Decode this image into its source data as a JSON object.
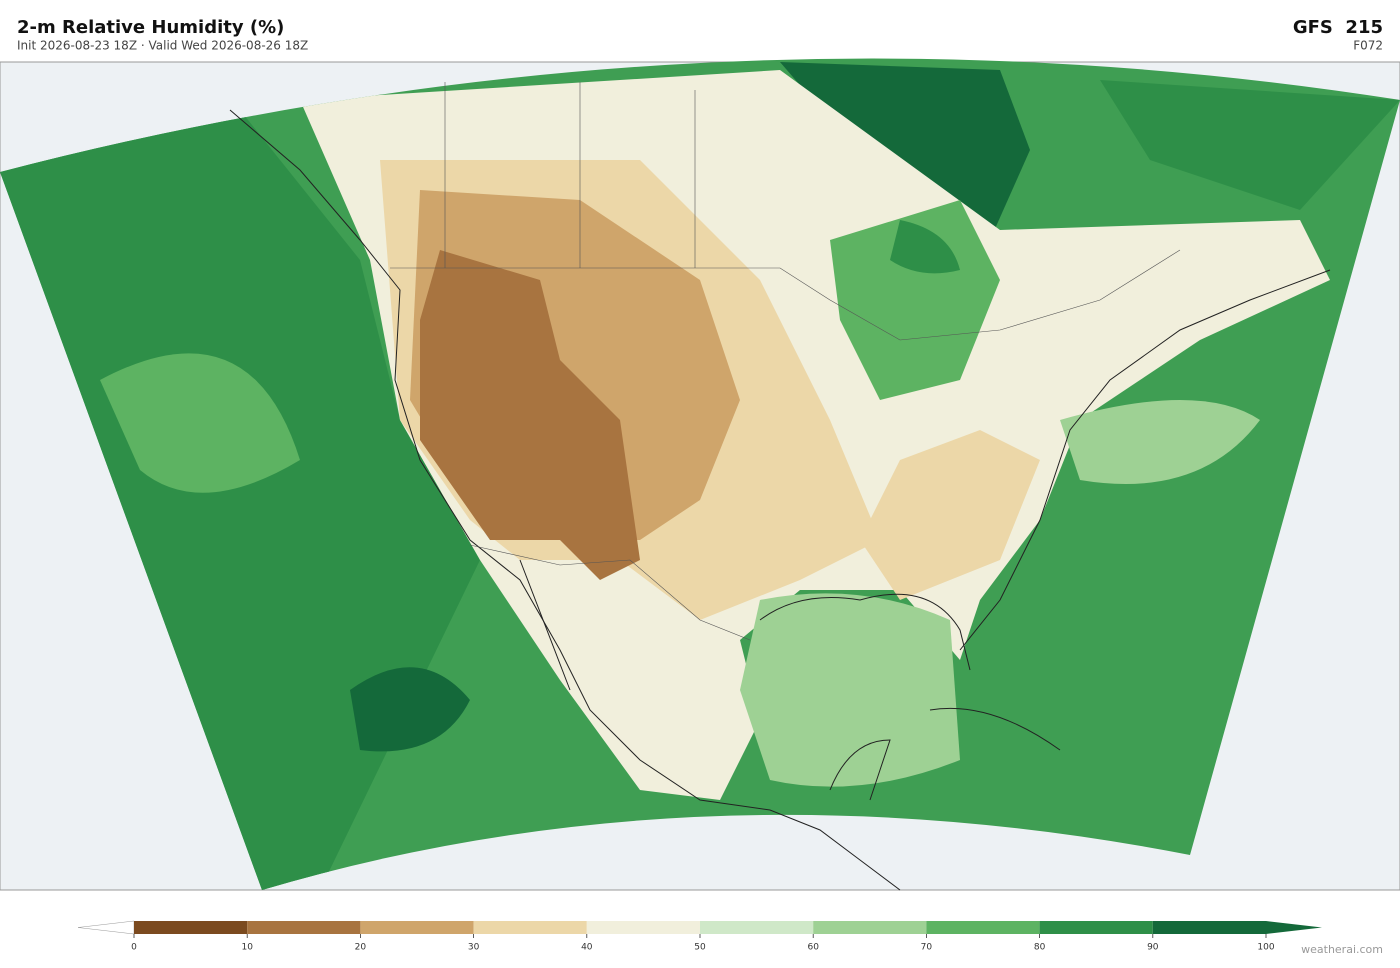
{
  "header": {
    "title": "2-m Relative Humidity  (%)",
    "subtitle": "Init 2026-08-23 18Z   ·   Valid Wed 2026-08-26 18Z",
    "model": "GFS  215",
    "forecast_hour": "F072"
  },
  "colorbar": {
    "ticks": [
      0,
      10,
      20,
      30,
      40,
      50,
      60,
      70,
      80,
      90,
      100
    ],
    "colors": [
      "#7b4a1f",
      "#a87440",
      "#cfa56b",
      "#ecd7a8",
      "#f1efdc",
      "#cfe8c8",
      "#9ed194",
      "#5db362",
      "#2e8f48",
      "#14693a"
    ],
    "under_color": "#ffffff",
    "over_color": "#14693a"
  },
  "footer": {
    "credit": "weatherai.com"
  }
}
